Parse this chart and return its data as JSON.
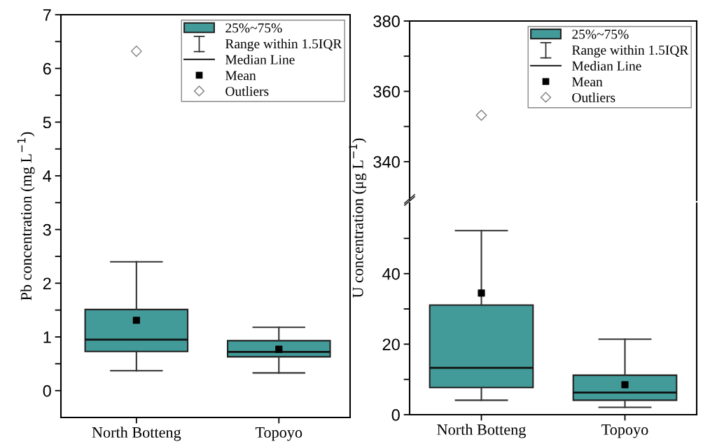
{
  "chart_data": [
    {
      "type": "box",
      "ylabel": "Pb concentration (mg L$^{−1}$)",
      "categories": [
        "North Botteng",
        "Topoyo"
      ],
      "ylim": [
        -0.5,
        7
      ],
      "yticks": [
        0,
        {
          "value": 0.5,
          "label": null
        },
        1,
        {
          "value": 1.5,
          "label": null
        },
        2,
        {
          "value": 2.5,
          "label": null
        },
        3,
        {
          "value": 3.5,
          "label": null
        },
        4,
        {
          "value": 4.5,
          "label": null
        },
        5,
        {
          "value": 5.5,
          "label": null
        },
        6,
        {
          "value": 6.5,
          "label": null
        },
        7
      ],
      "legend": "top right",
      "annotations": [
        "Range within 1.5IQR",
        "Median Line"
      ],
      "series": [
        {
          "name": "25%~75%",
          "color": "#429a99",
          "boxes": [
            {
              "low": 0.37,
              "q1": 0.73,
              "median": 0.95,
              "q3": 1.51,
              "high": 2.4
            },
            {
              "low": 0.33,
              "q1": 0.63,
              "median": 0.72,
              "q3": 0.93,
              "high": 1.18
            }
          ]
        },
        {
          "type": "scatter",
          "name": "Mean",
          "color": "#000000",
          "marker": "square",
          "values": [
            1.31,
            0.77
          ]
        },
        {
          "type": "scatter",
          "name": "Outliers",
          "color": "#7f7f7f",
          "marker": "diamond",
          "values": [
            6.32,
            null
          ]
        }
      ]
    },
    {
      "type": "scatter",
      "categories": [
        null,
        null
      ],
      "ylim": [
        329,
        380
      ],
      "yticks": [
        340,
        {
          "value": 350,
          "label": null
        },
        360,
        {
          "value": 370,
          "label": null
        },
        380
      ],
      "tick_labels": "y",
      "series": [
        {
          "name": "Outliers",
          "color": "#7f7f7f",
          "marker": "diamond",
          "values": [
            353.2,
            null
          ]
        }
      ]
    },
    {
      "type": "box",
      "ylabel": "U concentration (μg L$^{−1}$)",
      "categories": [
        "North Botteng",
        "Topoyo"
      ],
      "ylim": [
        0,
        60
      ],
      "yticks": [
        0,
        {
          "value": 10,
          "label": null
        },
        20,
        {
          "value": 30,
          "label": null
        },
        40,
        {
          "value": 50,
          "label": null
        }
      ],
      "legend": "top right",
      "annotations": [
        "Range within 1.5IQR",
        "Median Line"
      ],
      "series": [
        {
          "name": "25%~75%",
          "color": "#429a99",
          "boxes": [
            {
              "low": 4.1,
              "q1": 7.7,
              "median": 13.3,
              "q3": 31.1,
              "high": 52.2
            },
            {
              "low": 2.1,
              "q1": 4.1,
              "median": 6.3,
              "q3": 11.2,
              "high": 21.4
            }
          ]
        },
        {
          "type": "scatter",
          "name": "Mean",
          "color": "#000000",
          "marker": "square",
          "values": [
            34.5,
            8.5
          ]
        }
      ]
    }
  ]
}
